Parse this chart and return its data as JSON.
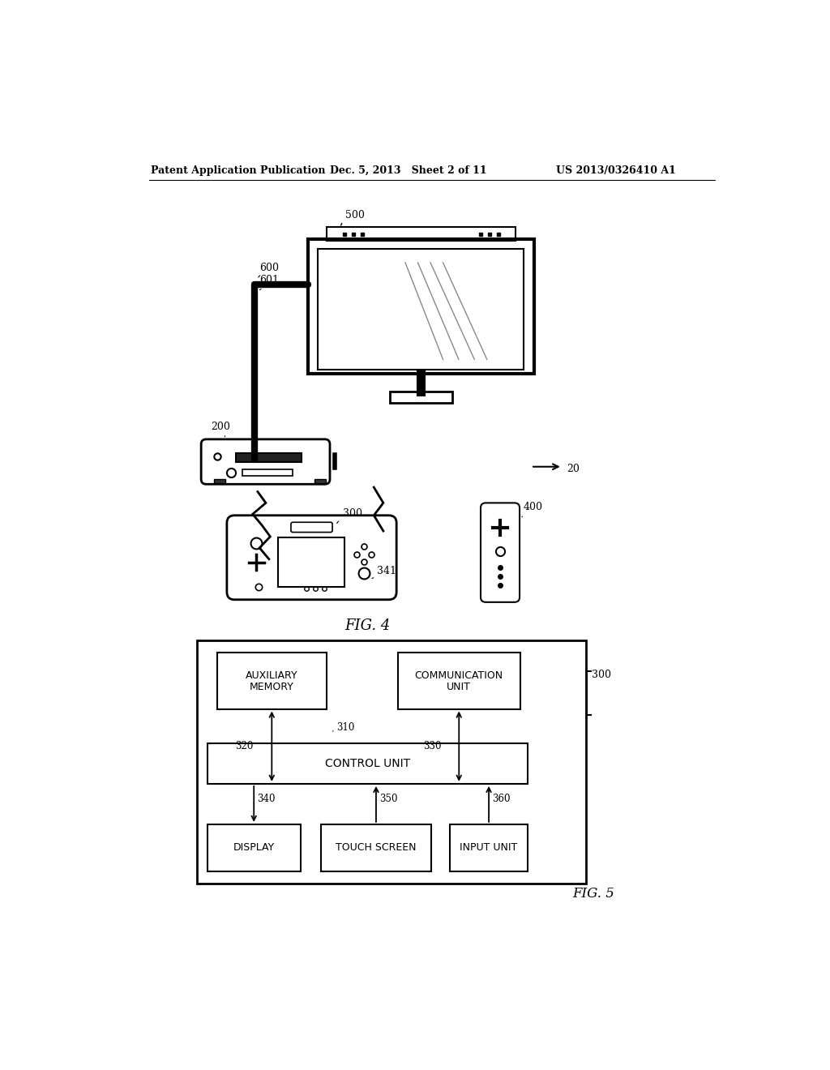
{
  "bg_color": "#ffffff",
  "line_color": "#000000",
  "header_left": "Patent Application Publication",
  "header_mid": "Dec. 5, 2013   Sheet 2 of 11",
  "header_right": "US 2013/0326410 A1",
  "fig4_label": "FIG. 4",
  "fig5_label": "FIG. 5"
}
